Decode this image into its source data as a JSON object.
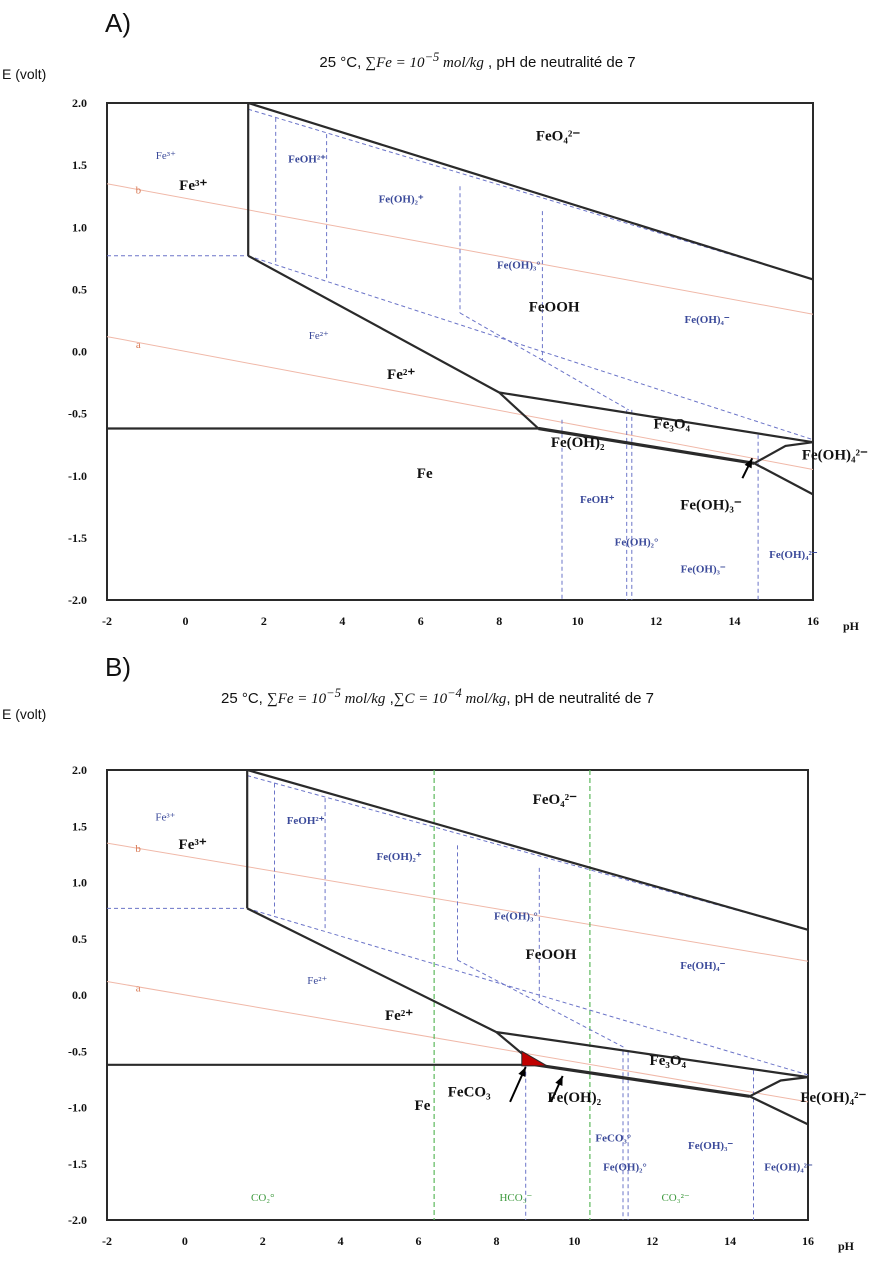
{
  "panels": [
    {
      "id": "a",
      "panel_label": "A)",
      "title_parts": [
        "25 °C, ",
        "∑Fe = 10",
        "−5",
        " mol/kg",
        " , pH de neutralité de 7"
      ],
      "y_axis_label": "E (volt)",
      "x_axis_label": "pH",
      "x_ticks": [
        "-2",
        "0",
        "2",
        "4",
        "6",
        "8",
        "10",
        "12",
        "14",
        "16"
      ],
      "y_ticks": [
        "2.0",
        "1.5",
        "1.0",
        "0.5",
        "0.0",
        "-0.5",
        "-1.0",
        "-1.5",
        "-2.0"
      ],
      "species_labels": {
        "fe3_small": "Fe³⁺",
        "fe3": "Fe³⁺",
        "line_b": "b",
        "line_a": "a",
        "feoh2": "FeOH²⁺",
        "feoh2p": "Fe(OH)₂⁺",
        "feoh3o": "Fe(OH)₃°",
        "feo4": "FeO₄²⁻",
        "feooh": "FeOOH",
        "feoh4m": "Fe(OH)₄⁻",
        "fe2_small": "Fe²⁺",
        "fe2": "Fe²⁺",
        "fe3o4": "Fe₃O₄",
        "fe": "Fe",
        "feoh2_solid": "Fe(OH)₂",
        "feoh4_2m": "Fe(OH)₄²⁻",
        "feohp": "FeOH⁺",
        "feoh3_solid": "Fe(OH)₃⁻",
        "feoh2o": "Fe(OH)₂°",
        "feoh3m": "Fe(OH)₃⁻",
        "feoh4_2m_small": "Fe(OH)₄²⁻"
      }
    },
    {
      "id": "b",
      "panel_label": "B)",
      "title_parts": [
        "25 °C, ",
        "∑Fe = 10",
        "−5",
        " mol/kg",
        " ,",
        "∑C = 10",
        "−4",
        " mol/kg",
        ", pH de neutralité de 7"
      ],
      "y_axis_label": "E (volt)",
      "x_axis_label": "pH",
      "x_ticks": [
        "-2",
        "0",
        "2",
        "4",
        "6",
        "8",
        "10",
        "12",
        "14",
        "16"
      ],
      "y_ticks": [
        "2.0",
        "1.5",
        "1.0",
        "0.5",
        "0.0",
        "-0.5",
        "-1.0",
        "-1.5",
        "-2.0"
      ],
      "species_labels": {
        "fe3_small": "Fe³⁺",
        "fe3": "Fe³⁺",
        "line_b": "b",
        "line_a": "a",
        "feoh2": "FeOH²⁺",
        "feoh2p": "Fe(OH)₂⁺",
        "feoh3o": "Fe(OH)₃°",
        "feo4": "FeO₄²⁻",
        "feooh": "FeOOH",
        "feoh4m": "Fe(OH)₄⁻",
        "fe2_small": "Fe²⁺",
        "fe2": "Fe²⁺",
        "fe3o4": "Fe₃O₄",
        "feco3": "FeCO₃",
        "feoh2_solid": "Fe(OH)₂",
        "fe": "Fe",
        "feco3o": "FeCO₃°",
        "feoh3m": "Fe(OH)₃⁻",
        "feoh4_2m": "Fe(OH)₄²⁻",
        "feoh2o": "Fe(OH)₂°",
        "feoh4_2m_small": "Fe(OH)₄²⁻",
        "co2o": "CO₂°",
        "hco3m": "HCO₃⁻",
        "co3_2m": "CO₃²⁻"
      }
    }
  ],
  "colors": {
    "boundary": "#2a2a2a",
    "aqueous_boundary": "#6b74c8",
    "aqueous_text": "#3b4a9a",
    "water_line": "#f0b8a8",
    "water_text": "#d97a55",
    "carbonate_boundary": "#5cb85c",
    "carbonate_text": "#3f9a3f",
    "feco3_fill": "#c00000"
  }
}
